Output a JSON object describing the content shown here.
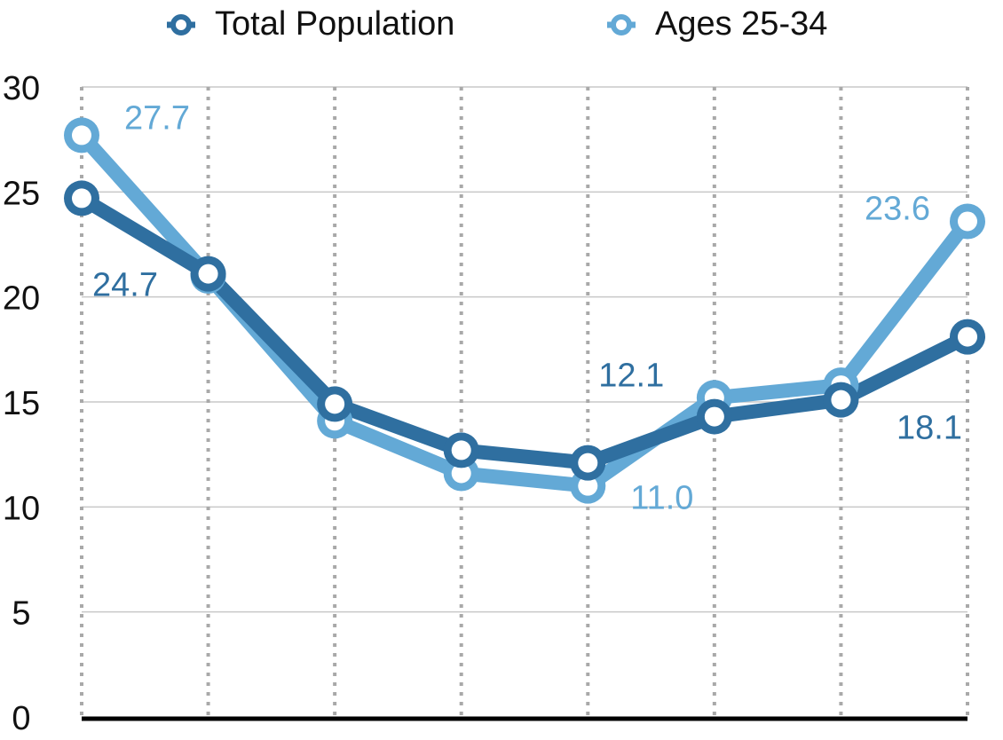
{
  "chart_data": {
    "type": "line",
    "title": "",
    "xlabel": "",
    "ylabel": "",
    "x": [
      1,
      2,
      3,
      4,
      5,
      6,
      7,
      8
    ],
    "ylim": [
      0,
      30
    ],
    "yticks": [
      "0",
      "5",
      "10",
      "15",
      "20",
      "25",
      "30"
    ],
    "grid": {
      "horizontal": true,
      "vertical": true,
      "vertical_style": "dotted"
    },
    "legend_position": "top",
    "series": [
      {
        "name": "Total Population",
        "color": "#2F6FA0",
        "values": [
          24.7,
          21.1,
          14.9,
          12.7,
          12.1,
          14.3,
          15.1,
          18.1
        ],
        "labels": [
          {
            "index": 0,
            "text": "24.7"
          },
          {
            "index": 4,
            "text": "12.1"
          },
          {
            "index": 7,
            "text": "18.1"
          }
        ]
      },
      {
        "name": "Ages 25-34",
        "color": "#63A9D6",
        "values": [
          27.7,
          21.0,
          14.1,
          11.6,
          11.0,
          15.2,
          15.8,
          23.6
        ],
        "labels": [
          {
            "index": 0,
            "text": "27.7"
          },
          {
            "index": 4,
            "text": "11.0"
          },
          {
            "index": 7,
            "text": "23.6"
          }
        ]
      }
    ]
  }
}
